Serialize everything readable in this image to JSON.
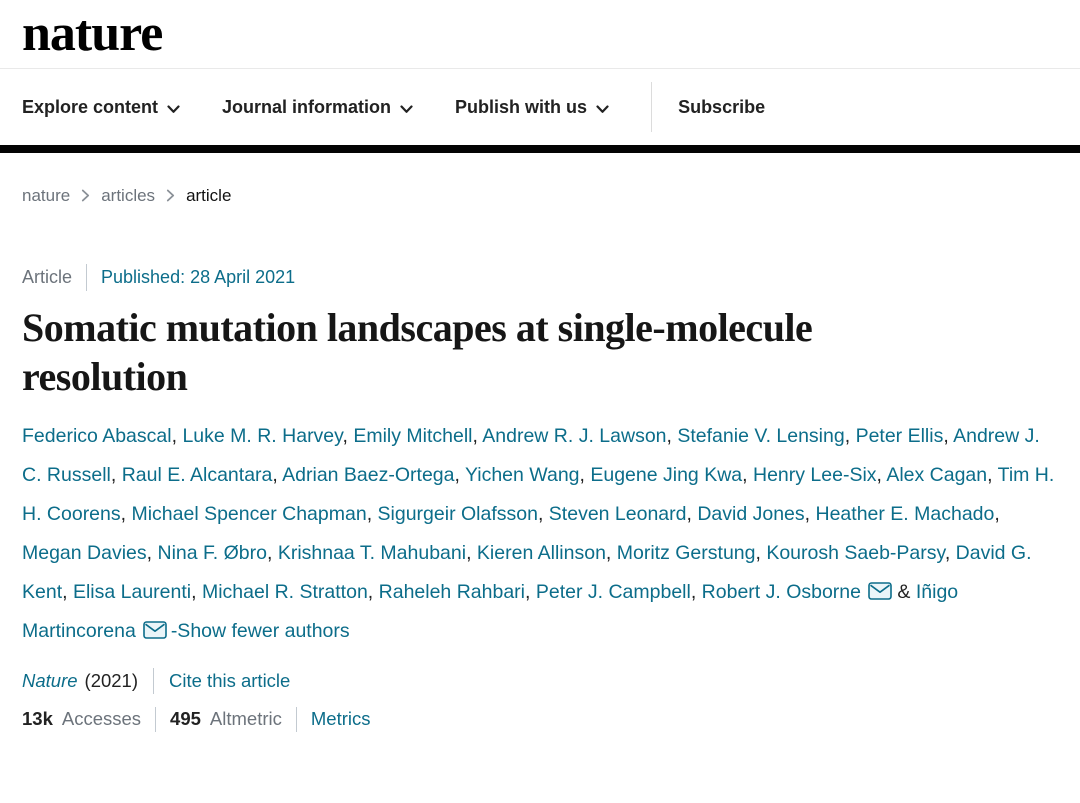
{
  "header": {
    "logo_text": "nature",
    "nav_items": [
      {
        "label": "Explore content",
        "has_chevron": true
      },
      {
        "label": "Journal information",
        "has_chevron": true
      },
      {
        "label": "Publish with us",
        "has_chevron": true
      },
      {
        "label": "Subscribe",
        "has_chevron": false
      }
    ]
  },
  "breadcrumb": {
    "items": [
      "nature",
      "articles",
      "article"
    ]
  },
  "article": {
    "type_label": "Article",
    "published_text": "Published: 28 April 2021",
    "title": "Somatic mutation landscapes at single-molecule resolution",
    "authors": [
      {
        "name": "Federico Abascal"
      },
      {
        "name": "Luke M. R. Harvey"
      },
      {
        "name": "Emily Mitchell"
      },
      {
        "name": "Andrew R. J. Lawson"
      },
      {
        "name": "Stefanie V. Lensing"
      },
      {
        "name": "Peter Ellis"
      },
      {
        "name": "Andrew J. C. Russell"
      },
      {
        "name": "Raul E. Alcantara"
      },
      {
        "name": "Adrian Baez-Ortega"
      },
      {
        "name": "Yichen Wang"
      },
      {
        "name": "Eugene Jing Kwa"
      },
      {
        "name": "Henry Lee-Six"
      },
      {
        "name": "Alex Cagan"
      },
      {
        "name": "Tim H. H. Coorens"
      },
      {
        "name": "Michael Spencer Chapman"
      },
      {
        "name": "Sigurgeir Olafsson"
      },
      {
        "name": "Steven Leonard"
      },
      {
        "name": "David Jones"
      },
      {
        "name": "Heather E. Machado"
      },
      {
        "name": "Megan Davies"
      },
      {
        "name": "Nina F. Øbro"
      },
      {
        "name": "Krishnaa T. Mahubani"
      },
      {
        "name": "Kieren Allinson"
      },
      {
        "name": "Moritz Gerstung"
      },
      {
        "name": "Kourosh Saeb-Parsy"
      },
      {
        "name": "David G. Kent"
      },
      {
        "name": "Elisa Laurenti"
      },
      {
        "name": "Michael R. Stratton"
      },
      {
        "name": "Raheleh Rahbari"
      },
      {
        "name": "Peter J. Campbell"
      },
      {
        "name": "Robert J. Osborne",
        "email": true
      },
      {
        "name": "Iñigo Martincorena",
        "email": true
      }
    ],
    "authors_conjunction": "&",
    "show_fewer_label": "-Show fewer authors",
    "journal_name": "Nature",
    "journal_year": "(2021)",
    "cite_label": "Cite this article",
    "metrics": {
      "accesses_value": "13k",
      "accesses_label": "Accesses",
      "altmetric_value": "495",
      "altmetric_label": "Altmetric",
      "metrics_link_label": "Metrics"
    }
  },
  "colors": {
    "link": "#0c6d8a",
    "nav_text": "#222222",
    "muted_text": "#6c737b",
    "black_bar": "#030303"
  }
}
